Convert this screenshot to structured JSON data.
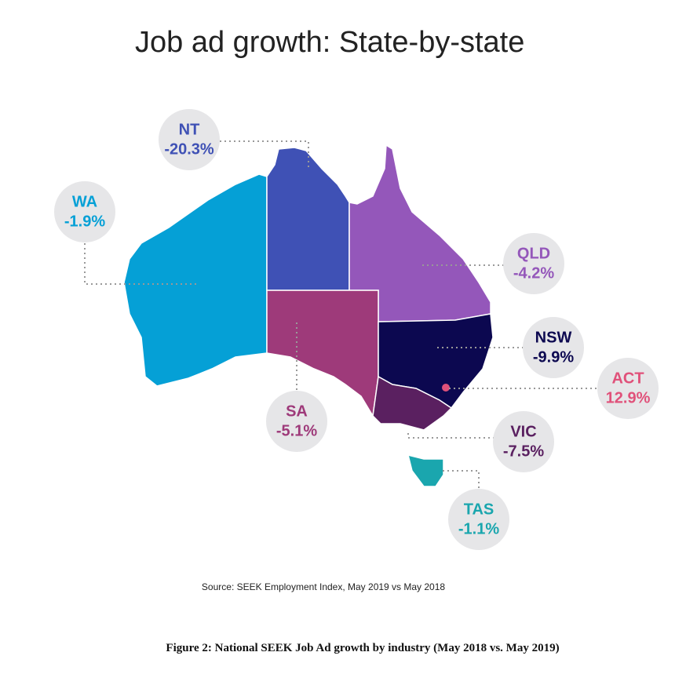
{
  "title": "Job ad growth: State-by-state",
  "states": [
    {
      "name": "WA",
      "value": "-1.9%",
      "color": "#05a0d6"
    },
    {
      "name": "NT",
      "value": "-20.3%",
      "color": "#3f51b5"
    },
    {
      "name": "QLD",
      "value": "-4.2%",
      "color": "#9457ba"
    },
    {
      "name": "SA",
      "value": "-5.1%",
      "color": "#9e3a7a"
    },
    {
      "name": "NSW",
      "value": "-9.9%",
      "color": "#0c0850"
    },
    {
      "name": "VIC",
      "value": "-7.5%",
      "color": "#5a2060"
    },
    {
      "name": "TAS",
      "value": "-1.1%",
      "color": "#1aa6ae"
    },
    {
      "name": "ACT",
      "value": "12.9%",
      "color": "#e0517a"
    }
  ],
  "source": "Source: SEEK Employment Index, May 2019 vs May 2018",
  "caption": "Figure 2: National SEEK Job Ad growth by industry (May 2018 vs. May 2019)"
}
